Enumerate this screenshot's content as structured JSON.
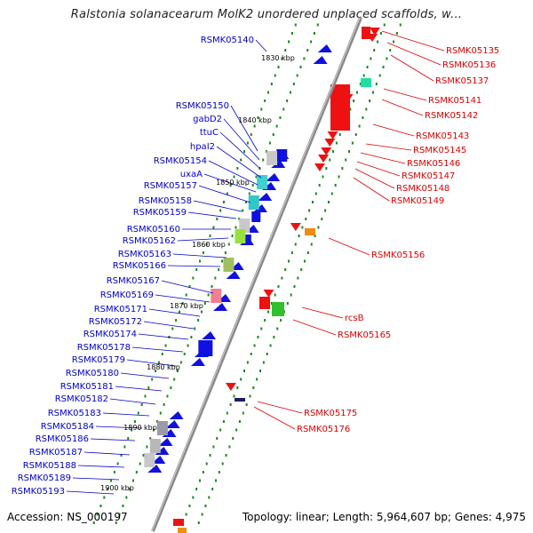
{
  "title": "Ralstonia solanacearum MolK2 unordered unplaced scaffolds, w...",
  "footer": {
    "accession": "Accession: NS_000197",
    "topology": "Topology: linear; Length: 5,964,607 bp; Genes: 4,975"
  },
  "colors": {
    "left_label": "#0000cc",
    "right_label": "#dd0000",
    "axis": "#888888",
    "tick": "#1b8a1b",
    "forward_gene": "#1010e0",
    "reverse_gene": "#ee1111"
  },
  "scale_labels": [
    {
      "text": "1830 kbp"
    },
    {
      "text": "1840 kbp"
    },
    {
      "text": "1850 kbp"
    },
    {
      "text": "1860 kbp"
    },
    {
      "text": "1870 kbp"
    },
    {
      "text": "1880 kbp"
    },
    {
      "text": "1890 kbp"
    },
    {
      "text": "1900 kbp"
    }
  ],
  "left_labels": [
    "RSMK05140",
    "RSMK05150",
    "gabD2",
    "ttuC",
    "hpaI2",
    "RSMK05154",
    "uxaA",
    "RSMK05157",
    "RSMK05158",
    "RSMK05159",
    "RSMK05160",
    "RSMK05162",
    "RSMK05163",
    "RSMK05166",
    "RSMK05167",
    "RSMK05169",
    "RSMK05171",
    "RSMK05172",
    "RSMK05174",
    "RSMK05178",
    "RSMK05179",
    "RSMK05180",
    "RSMK05181",
    "RSMK05182",
    "RSMK05183",
    "RSMK05184",
    "RSMK05186",
    "RSMK05187",
    "RSMK05188",
    "RSMK05189",
    "RSMK05193"
  ],
  "right_labels": [
    "RSMK05135",
    "RSMK05136",
    "RSMK05137",
    "RSMK05141",
    "RSMK05142",
    "RSMK05143",
    "RSMK05145",
    "RSMK05146",
    "RSMK05147",
    "RSMK05148",
    "RSMK05149",
    "RSMK05156",
    "rcsB",
    "RSMK05165",
    "RSMK05175",
    "RSMK05176"
  ]
}
